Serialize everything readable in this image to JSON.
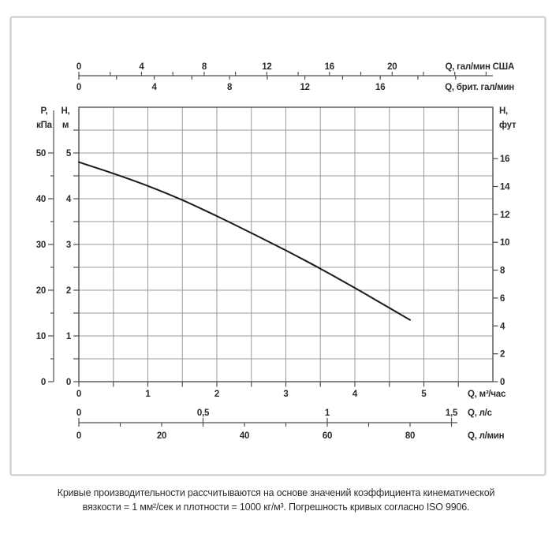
{
  "chart_data": {
    "type": "line",
    "title": "",
    "description": "Pump performance curve (Q-H) with multiple unit scales",
    "xlim": [
      0,
      6
    ],
    "ylim": [
      0,
      6
    ],
    "grid": true,
    "grid_step": 0.5,
    "curve": {
      "name": "pump-performance-curve",
      "x_unit": "м³/час",
      "y_unit": "м",
      "points": [
        [
          0,
          4.8
        ],
        [
          0.5,
          4.55
        ],
        [
          1,
          4.28
        ],
        [
          1.5,
          3.97
        ],
        [
          2,
          3.62
        ],
        [
          2.5,
          3.25
        ],
        [
          3,
          2.87
        ],
        [
          3.5,
          2.47
        ],
        [
          4,
          2.05
        ],
        [
          4.4,
          1.7
        ],
        [
          4.8,
          1.35
        ]
      ]
    },
    "axes": {
      "us_gpm": {
        "unit": "Q, гал/мин США",
        "labels": [
          0,
          4,
          8,
          12,
          16,
          20
        ],
        "tick_step": 2,
        "tick_max": 26,
        "to_m3h": 0.227
      },
      "imp_gpm": {
        "unit": "Q, брит. гал/мин",
        "labels": [
          0,
          4,
          8,
          12,
          16
        ],
        "tick_step": 2,
        "tick_max": 20,
        "to_m3h": 0.273
      },
      "kpa": {
        "title_lines": [
          "P,",
          "кПа"
        ],
        "labels": [
          0,
          10,
          20,
          30,
          40,
          50
        ],
        "minor_step": 5,
        "to_m": 0.1
      },
      "m": {
        "title_lines": [
          "H,",
          "м"
        ],
        "labels": [
          0,
          1,
          2,
          3,
          4,
          5
        ],
        "minor_step": 0.5,
        "minor_max": 5.5
      },
      "ft": {
        "title_lines": [
          "H,",
          "фут"
        ],
        "labels": [
          0,
          2,
          4,
          6,
          8,
          10,
          12,
          14,
          16
        ],
        "to_m": 0.3048
      },
      "m3h": {
        "unit": "Q, м³/час",
        "labels": [
          0,
          1,
          2,
          3,
          4,
          5
        ],
        "minor_step": 0.5,
        "minor_max": 5.5
      },
      "ls": {
        "unit": "Q, л/с",
        "labels": [
          {
            "v": 0,
            "t": "0"
          },
          {
            "v": 0.5,
            "t": "0,5"
          },
          {
            "v": 1,
            "t": "1"
          },
          {
            "v": 1.5,
            "t": "1,5"
          }
        ],
        "to_m3h": 3.6
      },
      "lmin": {
        "unit": "Q, л/мин",
        "labels": [
          0,
          20,
          40,
          60,
          80
        ],
        "tick_step": 10,
        "tick_max": 90,
        "to_m3h": 0.06
      }
    }
  },
  "caption": {
    "line1": "Кривые производительности рассчитываются на основе значений коэффициента кинематической",
    "line2": "вязкости = 1 мм²/сек и плотности = 1000 кг/м³. Погрешность кривых согласно ISO 9906."
  },
  "colors": {
    "background": "#ffffff",
    "border": "#c9c9c9",
    "grid": "#9b9b9b",
    "frame": "#4f4f4f",
    "curve": "#1a1a1a",
    "text": "#2b2b2b"
  }
}
